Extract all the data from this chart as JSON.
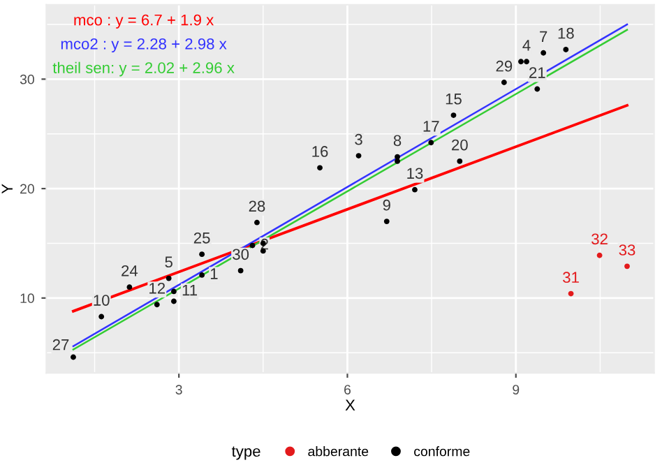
{
  "chart_data": {
    "type": "scatter",
    "xlabel": "X",
    "ylabel": "Y",
    "legend_title": "type",
    "legend": "bottom",
    "grid": true,
    "marker": "circle",
    "xlim": [
      0.64,
      11.46
    ],
    "xticks": [
      3,
      6,
      9
    ],
    "ylim": [
      3.16,
      36.8
    ],
    "yticks": [
      10,
      20,
      30
    ],
    "series": [
      {
        "name": "mco : y = 6.7 + 1.9 x",
        "type": "line",
        "color": "#ff0000",
        "x": [
          1.12,
          10.98
        ],
        "values": [
          8.8,
          27.6
        ],
        "marker": "none"
      },
      {
        "name": "mco2 : y = 2.28 + 2.98 x",
        "type": "line",
        "color": "#3333ff",
        "x": [
          1.12,
          10.98
        ],
        "values": [
          5.6,
          35.0
        ],
        "marker": "none"
      },
      {
        "name": "theil sen: y = 2.02 + 2.96 x",
        "type": "line",
        "color": "#33cc33",
        "x": [
          1.12,
          10.98
        ],
        "values": [
          5.3,
          34.5
        ],
        "marker": "none"
      },
      {
        "name": "abberante",
        "color": "#e31a1c",
        "x": [
          9.98,
          10.49,
          10.98
        ],
        "values": [
          10.4,
          13.9,
          12.9
        ]
      },
      {
        "name": "conforme",
        "color": "#000000",
        "x": [
          1.12,
          1.62,
          2.12,
          2.61,
          2.82,
          2.91,
          2.91,
          3.41,
          3.41,
          4.1,
          4.31,
          4.39,
          4.5,
          4.5,
          5.51,
          6.2,
          6.89,
          6.89,
          7.49,
          7.89,
          8.0,
          7.2,
          6.7,
          8.79,
          9.09,
          9.19,
          9.49,
          9.89,
          9.38
        ],
        "values": [
          4.6,
          8.3,
          11.0,
          9.4,
          11.8,
          10.6,
          9.7,
          14.0,
          12.1,
          12.5,
          14.8,
          16.9,
          15.0,
          14.3,
          21.9,
          23.0,
          22.9,
          22.5,
          24.2,
          26.7,
          22.5,
          19.9,
          17.0,
          29.7,
          31.6,
          31.6,
          32.4,
          32.7,
          29.1
        ]
      }
    ],
    "annotations": [
      {
        "text": "27",
        "x": 1.12,
        "y": 4.6
      },
      {
        "text": "10",
        "x": 1.62,
        "y": 8.3
      },
      {
        "text": "24",
        "x": 2.12,
        "y": 11.0
      },
      {
        "text": "12",
        "x": 2.61,
        "y": 9.4
      },
      {
        "text": "5",
        "x": 2.82,
        "y": 11.8
      },
      {
        "text": "11",
        "x": 2.91,
        "y": 10.6
      },
      {
        "text": "25",
        "x": 3.41,
        "y": 14.0
      },
      {
        "text": "1",
        "x": 3.41,
        "y": 12.1
      },
      {
        "text": "30",
        "x": 4.1,
        "y": 12.5
      },
      {
        "text": "2",
        "x": 4.31,
        "y": 14.8
      },
      {
        "text": "28",
        "x": 4.39,
        "y": 16.9
      },
      {
        "text": "16",
        "x": 5.51,
        "y": 21.9
      },
      {
        "text": "3",
        "x": 6.2,
        "y": 23.0
      },
      {
        "text": "8",
        "x": 6.89,
        "y": 22.9
      },
      {
        "text": "17",
        "x": 7.49,
        "y": 24.2
      },
      {
        "text": "15",
        "x": 7.89,
        "y": 26.7
      },
      {
        "text": "20",
        "x": 8.0,
        "y": 22.5
      },
      {
        "text": "13",
        "x": 7.2,
        "y": 19.9
      },
      {
        "text": "9",
        "x": 6.7,
        "y": 17.0
      },
      {
        "text": "29",
        "x": 8.79,
        "y": 29.7
      },
      {
        "text": "4",
        "x": 9.19,
        "y": 31.6
      },
      {
        "text": "7",
        "x": 9.49,
        "y": 32.4
      },
      {
        "text": "18",
        "x": 9.89,
        "y": 32.7
      },
      {
        "text": "21",
        "x": 9.38,
        "y": 29.1
      },
      {
        "text": "31",
        "x": 9.98,
        "y": 10.4
      },
      {
        "text": "32",
        "x": 10.49,
        "y": 13.9
      },
      {
        "text": "33",
        "x": 10.98,
        "y": 12.9
      }
    ]
  }
}
